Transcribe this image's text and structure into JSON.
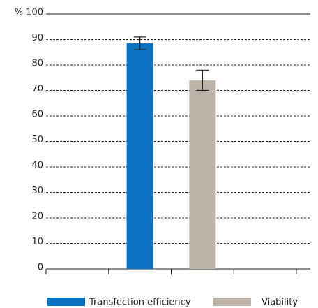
{
  "chart_data": {
    "type": "bar",
    "series": [
      {
        "name": "Transfection efficiency",
        "color": "#0a72c0",
        "values": [
          88.5
        ],
        "errors": [
          2.5
        ]
      },
      {
        "name": "Viability",
        "color": "#bdb3a8",
        "values": [
          74
        ],
        "errors": [
          4
        ]
      }
    ],
    "ylim": [
      0,
      100
    ],
    "yticks": [
      0,
      10,
      20,
      30,
      40,
      50,
      60,
      70,
      80,
      90,
      {
        "value": 100,
        "label": "% 100"
      }
    ],
    "grid": true
  }
}
